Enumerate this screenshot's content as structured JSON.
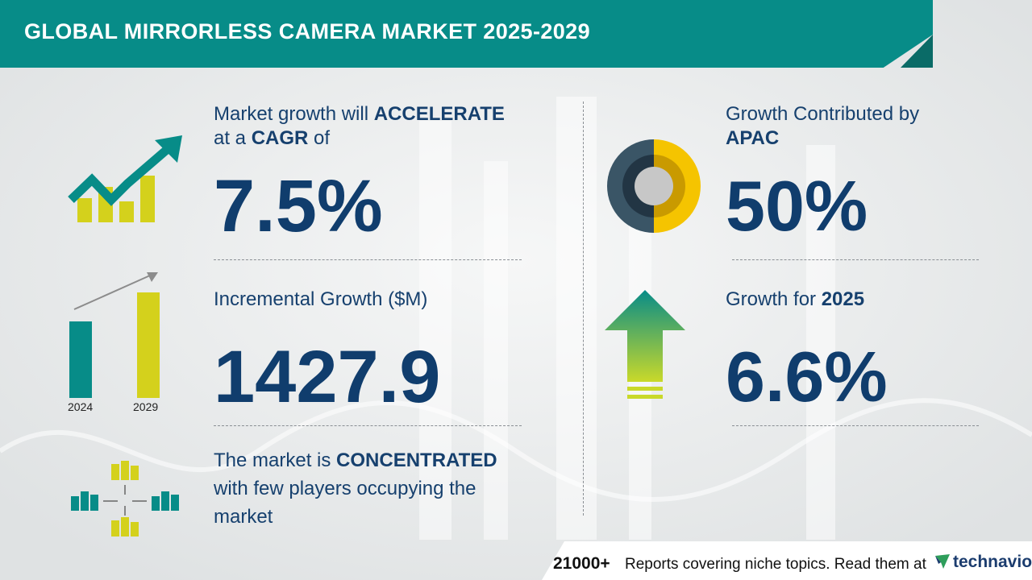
{
  "header": {
    "title": "GLOBAL MIRRORLESS CAMERA MARKET 2025-2029"
  },
  "cagr": {
    "line1_prefix": "Market growth will ",
    "line1_bold": "ACCELERATE",
    "line2_prefix": "at a ",
    "line2_bold": "CAGR",
    "line2_suffix": " of",
    "value": "7.5%"
  },
  "incremental": {
    "label": "Incremental Growth ($M)",
    "value": "1427.9",
    "year_start": "2024",
    "year_end": "2029"
  },
  "concentration": {
    "line1_prefix": "The market is ",
    "line1_bold": "CONCENTRATED",
    "line2": "with few players occupying the",
    "line3": "market"
  },
  "region": {
    "label": "Growth Contributed by",
    "region_name": "APAC",
    "value": "50%"
  },
  "yoy": {
    "label_prefix": "Growth for ",
    "label_year": "2025",
    "value": "6.6%"
  },
  "footer": {
    "count": "21000+",
    "text": "Reports covering niche topics. Read them at",
    "brand": "technavio"
  },
  "colors": {
    "teal": "#078c88",
    "navy": "#103d6d",
    "yellow": "#d4d11c",
    "gold": "#f5c400",
    "slate": "#3a5566"
  }
}
